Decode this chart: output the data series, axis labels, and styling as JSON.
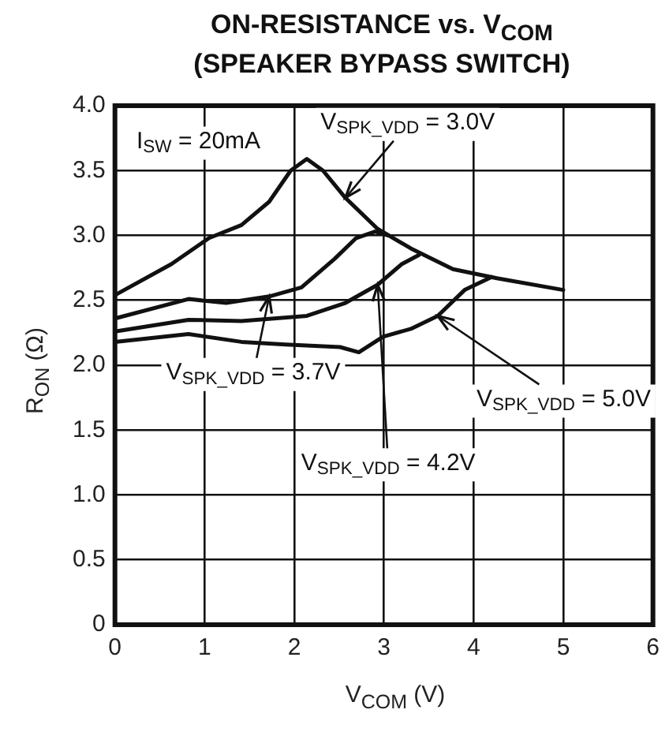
{
  "chart_data": {
    "type": "line",
    "title": "ON-RESISTANCE vs. V$_{COM}$",
    "subtitle": "(SPEAKER BYPASS SWITCH)",
    "xlabel": "V$_{COM}$ (V)",
    "ylabel": "R$_{ON}$ (Ω)",
    "annotations": [
      "I$_{SW}$ = 20mA"
    ],
    "series": [
      {
        "name": "V$_{SPK_VDD}$ = 3.0V",
        "color": "#111111",
        "x": [
          0,
          0.63,
          1.05,
          1.41,
          1.72,
          1.96,
          2.14,
          2.32,
          2.57,
          2.93,
          3.3,
          3.77,
          4.26,
          5.0
        ],
        "values": [
          2.54,
          2.78,
          2.98,
          3.08,
          3.26,
          3.5,
          3.59,
          3.5,
          3.29,
          3.05,
          2.9,
          2.74,
          2.67,
          2.58
        ]
      },
      {
        "name": "V$_{SPK_VDD}$ = 3.7V",
        "color": "#111111",
        "x": [
          0,
          0.82,
          1.24,
          1.72,
          2.08,
          2.45,
          2.69,
          2.9,
          3.05
        ],
        "values": [
          2.36,
          2.51,
          2.48,
          2.53,
          2.6,
          2.82,
          2.98,
          3.03,
          3.0
        ]
      },
      {
        "name": "V$_{SPK_VDD}$ = 4.2V",
        "color": "#111111",
        "x": [
          0,
          0.82,
          1.41,
          2.14,
          2.57,
          2.93,
          3.2,
          3.39
        ],
        "values": [
          2.26,
          2.35,
          2.34,
          2.38,
          2.48,
          2.62,
          2.78,
          2.85
        ]
      },
      {
        "name": "V$_{SPK_VDD}$ = 5.0V",
        "color": "#111111",
        "x": [
          0,
          0.82,
          1.41,
          1.9,
          2.51,
          2.72,
          2.99,
          3.3,
          3.6,
          3.9,
          4.2
        ],
        "values": [
          2.18,
          2.24,
          2.18,
          2.16,
          2.14,
          2.1,
          2.22,
          2.28,
          2.38,
          2.58,
          2.68
        ]
      }
    ],
    "xlim": [
      0,
      6
    ],
    "xticks": [
      0,
      1,
      2,
      3,
      4,
      5,
      6
    ],
    "ylim": [
      0,
      4
    ],
    "yticks": [
      0,
      {
        "value": 0.5,
        "label": "0.5"
      },
      {
        "value": 1,
        "label": "1.0"
      },
      {
        "value": 1.5,
        "label": "1.5"
      },
      {
        "value": 2,
        "label": "2.0"
      },
      {
        "value": 2.5,
        "label": "2.5"
      },
      {
        "value": 3,
        "label": "3.0"
      },
      {
        "value": 3.5,
        "label": "3.5"
      },
      {
        "value": 4,
        "label": "4.0"
      }
    ],
    "grid": true,
    "legend": false,
    "marker": "none",
    "line_style": "solid"
  }
}
